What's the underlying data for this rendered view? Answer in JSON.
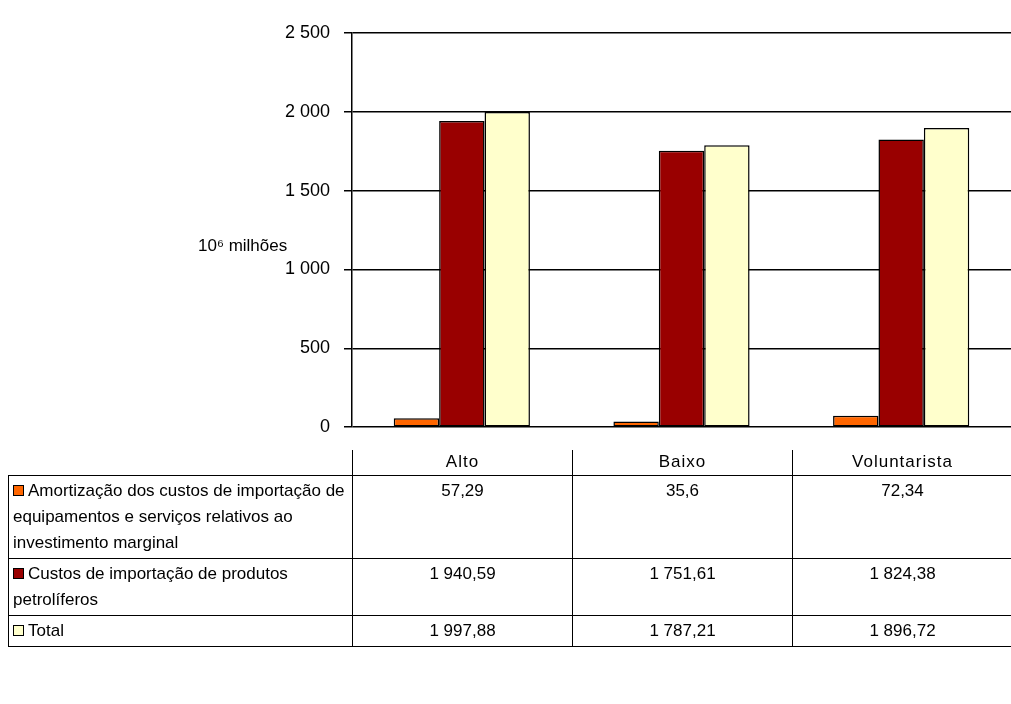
{
  "chart_data": {
    "type": "bar",
    "ylabel": "10⁶ milhões",
    "categories": [
      "Alto",
      "Baixo",
      "Voluntarista"
    ],
    "series": [
      {
        "name": "Amortização dos custos de importação de equipamentos e serviços relativos ao investimento marginal",
        "color": "#ff6600",
        "values": [
          57.29,
          35.6,
          72.34
        ],
        "value_labels": [
          "57,29",
          "35,6",
          "72,34"
        ]
      },
      {
        "name": "Custos de importação de produtos petrolíferos",
        "color": "#990000",
        "values": [
          1940.59,
          1751.61,
          1824.38
        ],
        "value_labels": [
          "1 940,59",
          "1 751,61",
          "1 824,38"
        ]
      },
      {
        "name": "Total",
        "color": "#ffffcc",
        "values": [
          1997.88,
          1787.21,
          1896.72
        ],
        "value_labels": [
          "1 997,88",
          "1 787,21",
          "1 896,72"
        ]
      }
    ],
    "ylim": [
      0,
      2500
    ],
    "yticks": [
      {
        "value": 0,
        "label": "0"
      },
      {
        "value": 500,
        "label": "500"
      },
      {
        "value": 1000,
        "label": "1 000"
      },
      {
        "value": 1500,
        "label": "1 500"
      },
      {
        "value": 2000,
        "label": "2 000"
      },
      {
        "value": 2500,
        "label": "2 500"
      }
    ],
    "grid": "y",
    "legend": "bottom"
  }
}
